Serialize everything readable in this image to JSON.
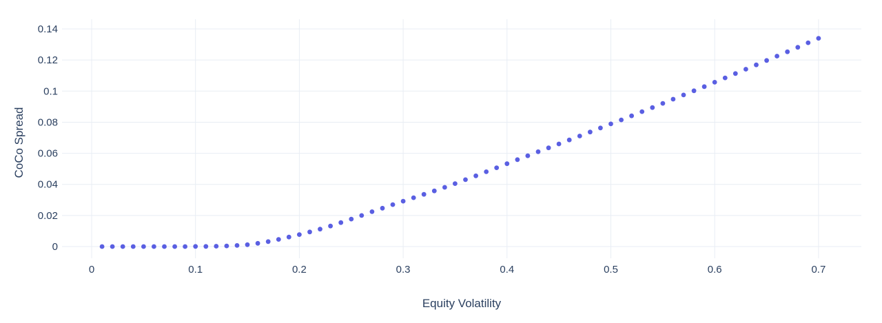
{
  "chart_data": {
    "type": "scatter",
    "title": "",
    "xlabel": "Equity Volatility",
    "ylabel": "CoCo Spread",
    "x": [
      0.01,
      0.02,
      0.03,
      0.04,
      0.05,
      0.06,
      0.07,
      0.08,
      0.09,
      0.1,
      0.11,
      0.12,
      0.13,
      0.14,
      0.15,
      0.16,
      0.17,
      0.18,
      0.19,
      0.2,
      0.21,
      0.22,
      0.23,
      0.24,
      0.25,
      0.26,
      0.27,
      0.28,
      0.29,
      0.3,
      0.31,
      0.32,
      0.33,
      0.34,
      0.35,
      0.36,
      0.37,
      0.38,
      0.39,
      0.4,
      0.41,
      0.42,
      0.43,
      0.44,
      0.45,
      0.46,
      0.47,
      0.48,
      0.49,
      0.5,
      0.51,
      0.52,
      0.53,
      0.54,
      0.55,
      0.56,
      0.57,
      0.58,
      0.59,
      0.6,
      0.61,
      0.62,
      0.63,
      0.64,
      0.65,
      0.66,
      0.67,
      0.68,
      0.69,
      0.7
    ],
    "y": [
      0.0,
      0.0,
      0.0,
      0.0,
      0.0,
      0.0,
      0.0,
      0.0,
      0.0,
      0.0001,
      0.0001,
      0.0002,
      0.0004,
      0.0007,
      0.0012,
      0.0021,
      0.0032,
      0.0046,
      0.0061,
      0.0077,
      0.0094,
      0.0112,
      0.0132,
      0.0154,
      0.0177,
      0.02,
      0.0224,
      0.0247,
      0.027,
      0.0292,
      0.0314,
      0.0336,
      0.0358,
      0.0381,
      0.0405,
      0.043,
      0.0455,
      0.0481,
      0.0507,
      0.0533,
      0.0559,
      0.0584,
      0.061,
      0.0635,
      0.066,
      0.0686,
      0.0711,
      0.0737,
      0.0763,
      0.0789,
      0.0815,
      0.0841,
      0.0868,
      0.0894,
      0.0921,
      0.0948,
      0.0975,
      0.1002,
      0.1029,
      0.1057,
      0.1085,
      0.1113,
      0.1141,
      0.1169,
      0.1197,
      0.1225,
      0.1253,
      0.1282,
      0.1311,
      0.134
    ],
    "xticks": {
      "values": [
        0,
        0.1,
        0.2,
        0.3,
        0.4,
        0.5,
        0.6,
        0.7
      ],
      "labels": [
        "0",
        "0.1",
        "0.2",
        "0.3",
        "0.4",
        "0.5",
        "0.6",
        "0.7"
      ]
    },
    "yticks": {
      "values": [
        0,
        0.02,
        0.04,
        0.06,
        0.08,
        0.1,
        0.12,
        0.14
      ],
      "labels": [
        "0",
        "0.02",
        "0.04",
        "0.06",
        "0.08",
        "0.1",
        "0.12",
        "0.14"
      ]
    },
    "xlim": [
      -0.0285,
      0.7415
    ],
    "ylim": [
      -0.0075,
      0.1465
    ],
    "grid": true,
    "legend": "none",
    "colors": {
      "marker": "#5a5fe2",
      "gridline": "#e8edf4",
      "text": "#2a3f5f",
      "background": "#ffffff"
    },
    "marker_radius_px": 3.4
  }
}
